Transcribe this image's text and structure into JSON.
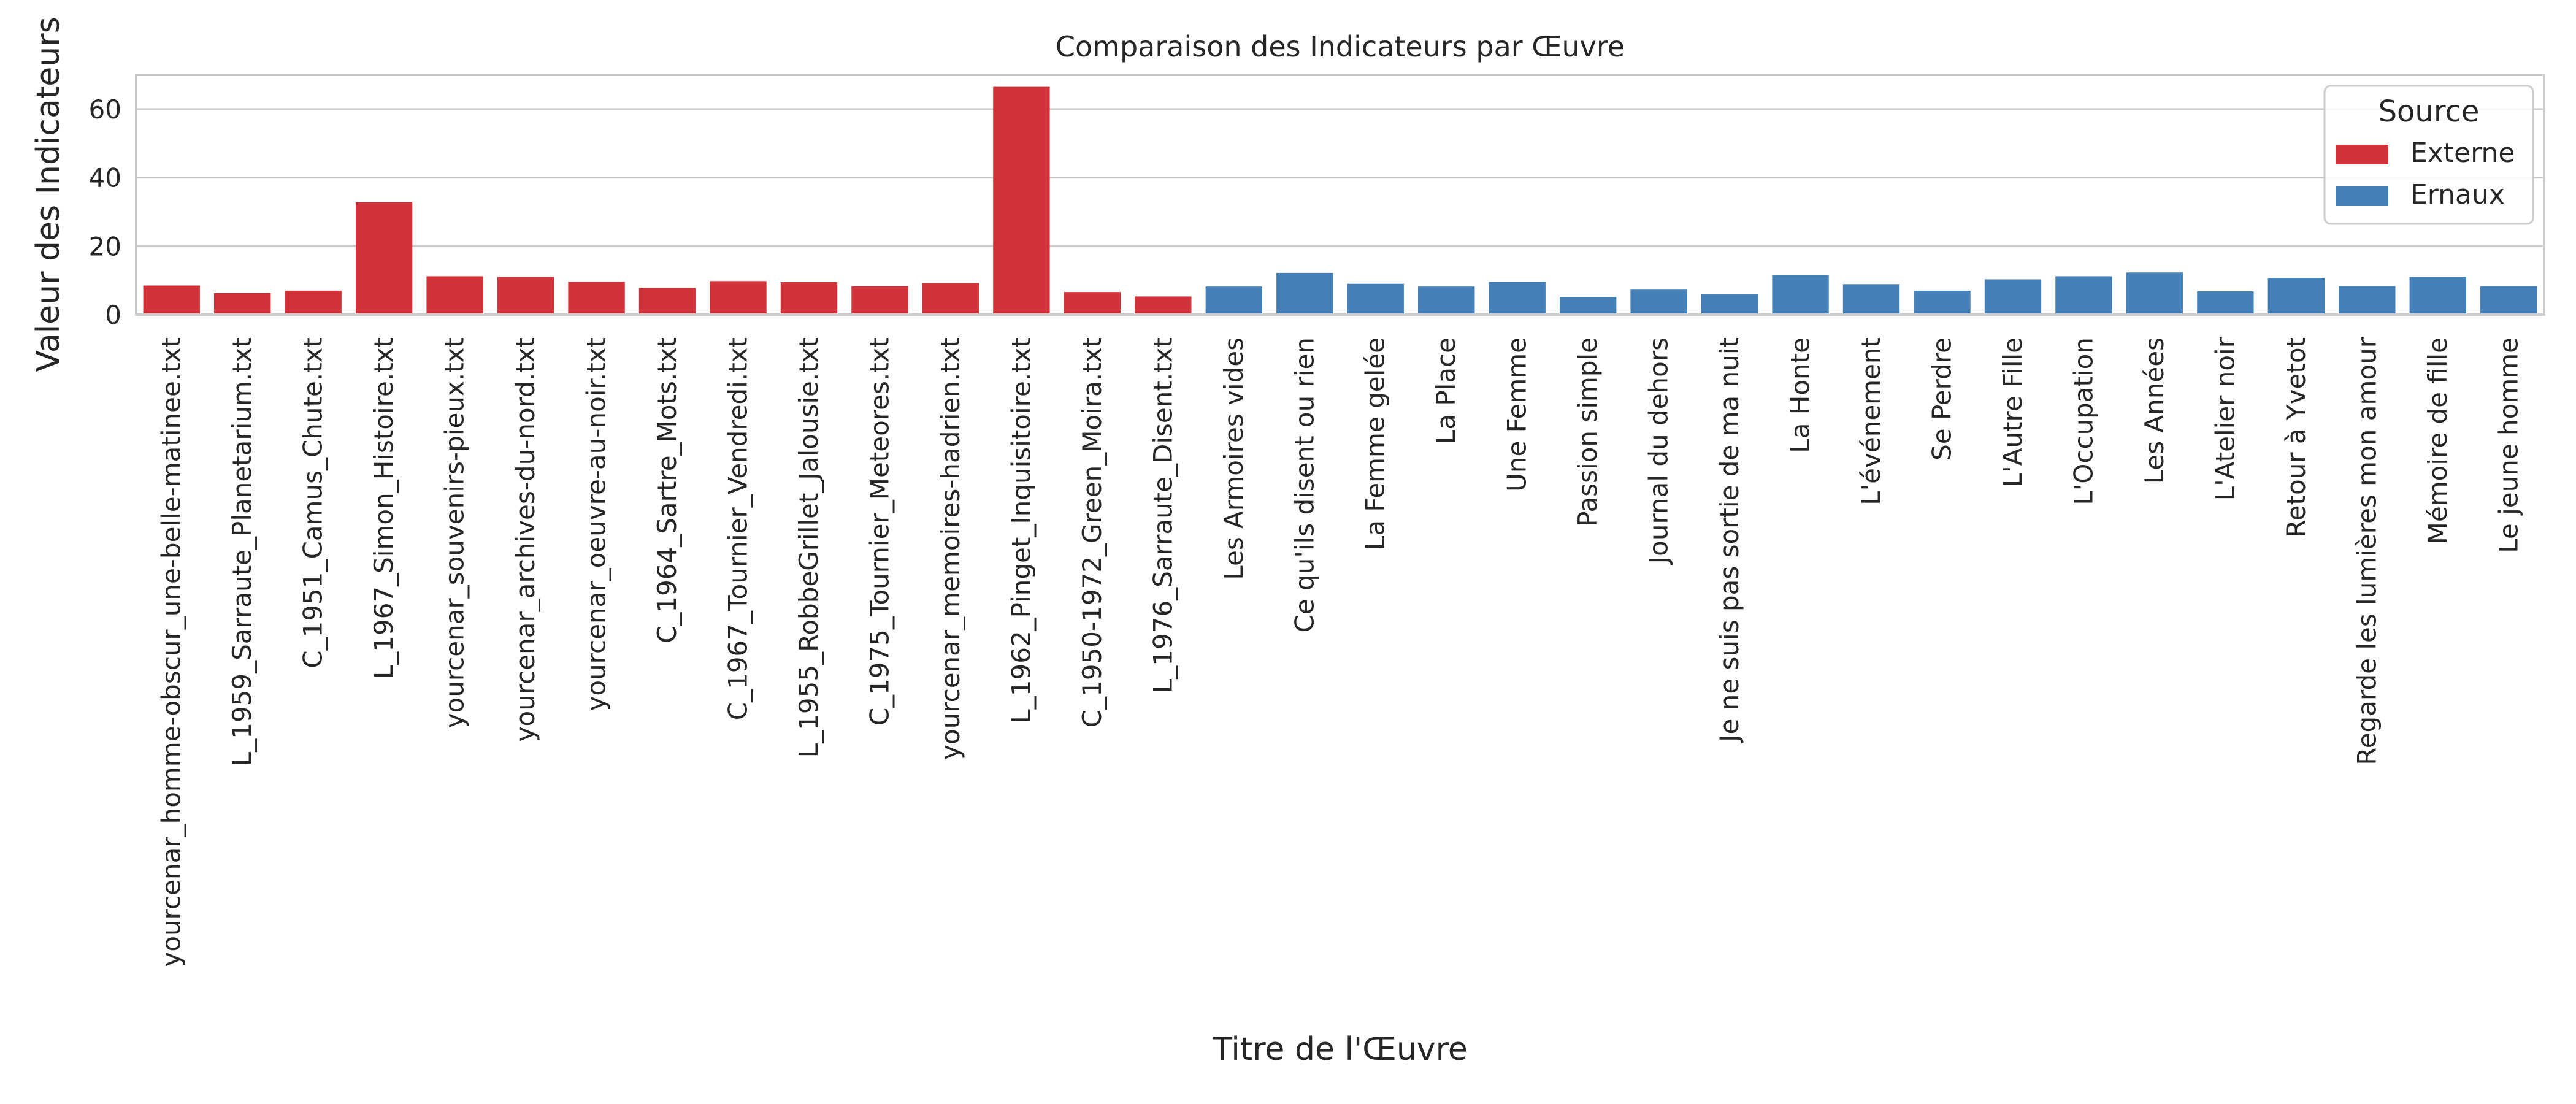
{
  "chart_data": {
    "type": "bar",
    "title": "Comparaison des Indicateurs par Œuvre",
    "xlabel": "Titre de l'Œuvre",
    "ylabel": "Valeur des Indicateurs",
    "ylim": [
      0,
      70
    ],
    "yticks": [
      0,
      20,
      40,
      60
    ],
    "grid": true,
    "legend": {
      "title": "Source",
      "placement": "top-right",
      "entries": [
        {
          "name": "Externe",
          "color": "#d1333a"
        },
        {
          "name": "Ernaux",
          "color": "#4480b7"
        }
      ]
    },
    "categories": [
      "yourcenar_homme-obscur_une-belle-matinee.txt",
      "L_1959_Sarraute_Planetarium.txt",
      "C_1951_Camus_Chute.txt",
      "L_1967_Simon_Histoire.txt",
      "yourcenar_souvenirs-pieux.txt",
      "yourcenar_archives-du-nord.txt",
      "yourcenar_oeuvre-au-noir.txt",
      "C_1964_Sartre_Mots.txt",
      "C_1967_Tournier_Vendredi.txt",
      "L_1955_RobbeGrillet_Jalousie.txt",
      "C_1975_Tournier_Meteores.txt",
      "yourcenar_memoires-hadrien.txt",
      "L_1962_Pinget_Inquisitoire.txt",
      "C_1950-1972_Green_Moira.txt",
      "L_1976_Sarraute_Disent.txt",
      "Les Armoires vides",
      "Ce qu'ils disent ou rien",
      "La Femme gelée",
      "La Place",
      "Une Femme",
      "Passion simple",
      "Journal du dehors",
      "Je ne suis pas sortie de ma nuit",
      "La Honte",
      "L'événement",
      "Se Perdre",
      "L'Autre Fille",
      "L'Occupation",
      "Les Années",
      "L'Atelier noir",
      "Retour à Yvetot",
      "Regarde les lumières mon amour",
      "Mémoire de fille",
      "Le jeune homme"
    ],
    "values": [
      8.5,
      6.3,
      7.0,
      32.8,
      11.2,
      11.0,
      9.6,
      7.8,
      9.8,
      9.5,
      8.3,
      9.2,
      66.5,
      6.6,
      5.3,
      8.2,
      12.2,
      9.0,
      8.2,
      9.6,
      5.1,
      7.3,
      5.9,
      11.6,
      8.9,
      7.0,
      10.3,
      11.2,
      12.3,
      6.8,
      10.7,
      8.3,
      11.0,
      8.3
    ],
    "sources": [
      "Externe",
      "Externe",
      "Externe",
      "Externe",
      "Externe",
      "Externe",
      "Externe",
      "Externe",
      "Externe",
      "Externe",
      "Externe",
      "Externe",
      "Externe",
      "Externe",
      "Externe",
      "Ernaux",
      "Ernaux",
      "Ernaux",
      "Ernaux",
      "Ernaux",
      "Ernaux",
      "Ernaux",
      "Ernaux",
      "Ernaux",
      "Ernaux",
      "Ernaux",
      "Ernaux",
      "Ernaux",
      "Ernaux",
      "Ernaux",
      "Ernaux",
      "Ernaux",
      "Ernaux",
      "Ernaux"
    ]
  }
}
